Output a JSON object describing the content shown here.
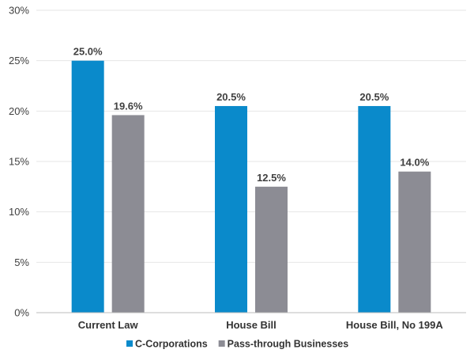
{
  "chart_data": {
    "type": "bar",
    "title": "",
    "xlabel": "",
    "ylabel": "",
    "ylim": [
      0,
      30
    ],
    "yticks": [
      0,
      5,
      10,
      15,
      20,
      25,
      30
    ],
    "tick_suffix": "%",
    "grid": true,
    "legend_position": "bottom-left",
    "categories": [
      "Current Law",
      "House Bill",
      "House Bill, No 199A"
    ],
    "series": [
      {
        "name": "C-Corporations",
        "color": "#0a8acb",
        "values": [
          25.0,
          20.5,
          20.5
        ],
        "labels": [
          "25.0%",
          "20.5%",
          "20.5%"
        ]
      },
      {
        "name": "Pass-through Businesses",
        "color": "#8c8c94",
        "values": [
          19.6,
          12.5,
          14.0
        ],
        "labels": [
          "19.6%",
          "12.5%",
          "14.0%"
        ]
      }
    ]
  }
}
